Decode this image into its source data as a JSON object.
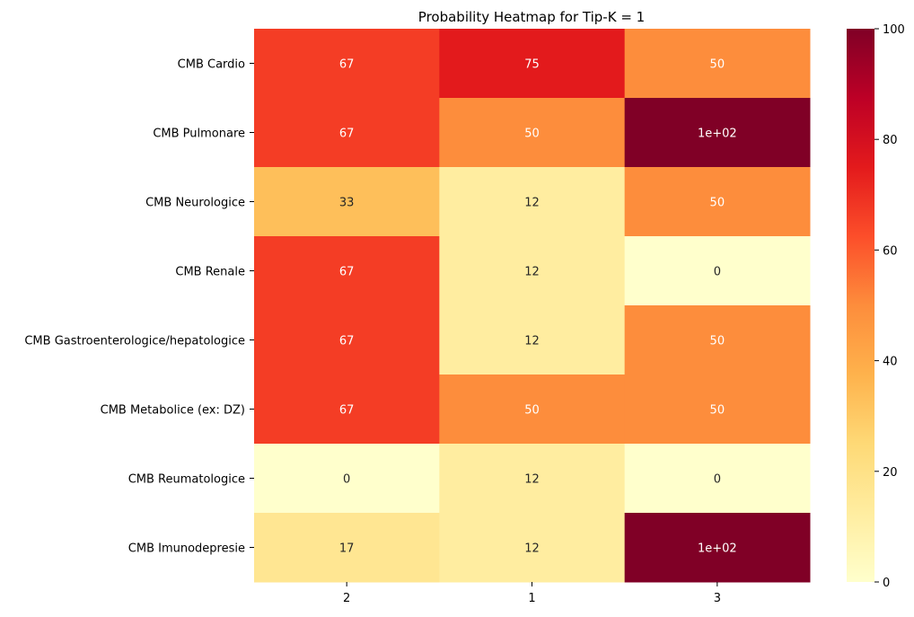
{
  "chart_data": {
    "type": "heatmap",
    "title": "Probability Heatmap for Tip-K = 1",
    "xlabel": "",
    "ylabel": "",
    "columns": [
      "2",
      "1",
      "3"
    ],
    "rows": [
      "CMB Cardio",
      "CMB Pulmonare",
      "CMB Neurologice",
      "CMB Renale",
      "CMB Gastroenterologice/hepatologice",
      "CMB Metabolice (ex: DZ) ",
      "CMB Reumatologice",
      "CMB Imunodepresie"
    ],
    "values": [
      [
        66.67,
        75.0,
        50.0
      ],
      [
        66.67,
        50.0,
        100.0
      ],
      [
        33.33,
        12.5,
        50.0
      ],
      [
        66.67,
        12.5,
        0.0
      ],
      [
        66.67,
        12.5,
        50.0
      ],
      [
        66.67,
        50.0,
        50.0
      ],
      [
        0.0,
        12.5,
        0.0
      ],
      [
        16.67,
        12.5,
        100.0
      ]
    ],
    "cell_labels": [
      [
        "67",
        "75",
        "50"
      ],
      [
        "67",
        "50",
        "1e+02"
      ],
      [
        "33",
        "12",
        "50"
      ],
      [
        "67",
        "12",
        "0"
      ],
      [
        "67",
        "12",
        "50"
      ],
      [
        "67",
        "50",
        "50"
      ],
      [
        "0",
        "12",
        "0"
      ],
      [
        "17",
        "12",
        "1e+02"
      ]
    ],
    "colorbar": {
      "min": 0,
      "max": 100,
      "ticks": [
        0,
        20,
        40,
        60,
        80,
        100
      ],
      "colormap": "YlOrRd",
      "stops": [
        "#ffffcc",
        "#ffeda0",
        "#fed976",
        "#feb24c",
        "#fd8d3c",
        "#fc4e2a",
        "#e31a1c",
        "#bd0026",
        "#800026"
      ]
    }
  }
}
